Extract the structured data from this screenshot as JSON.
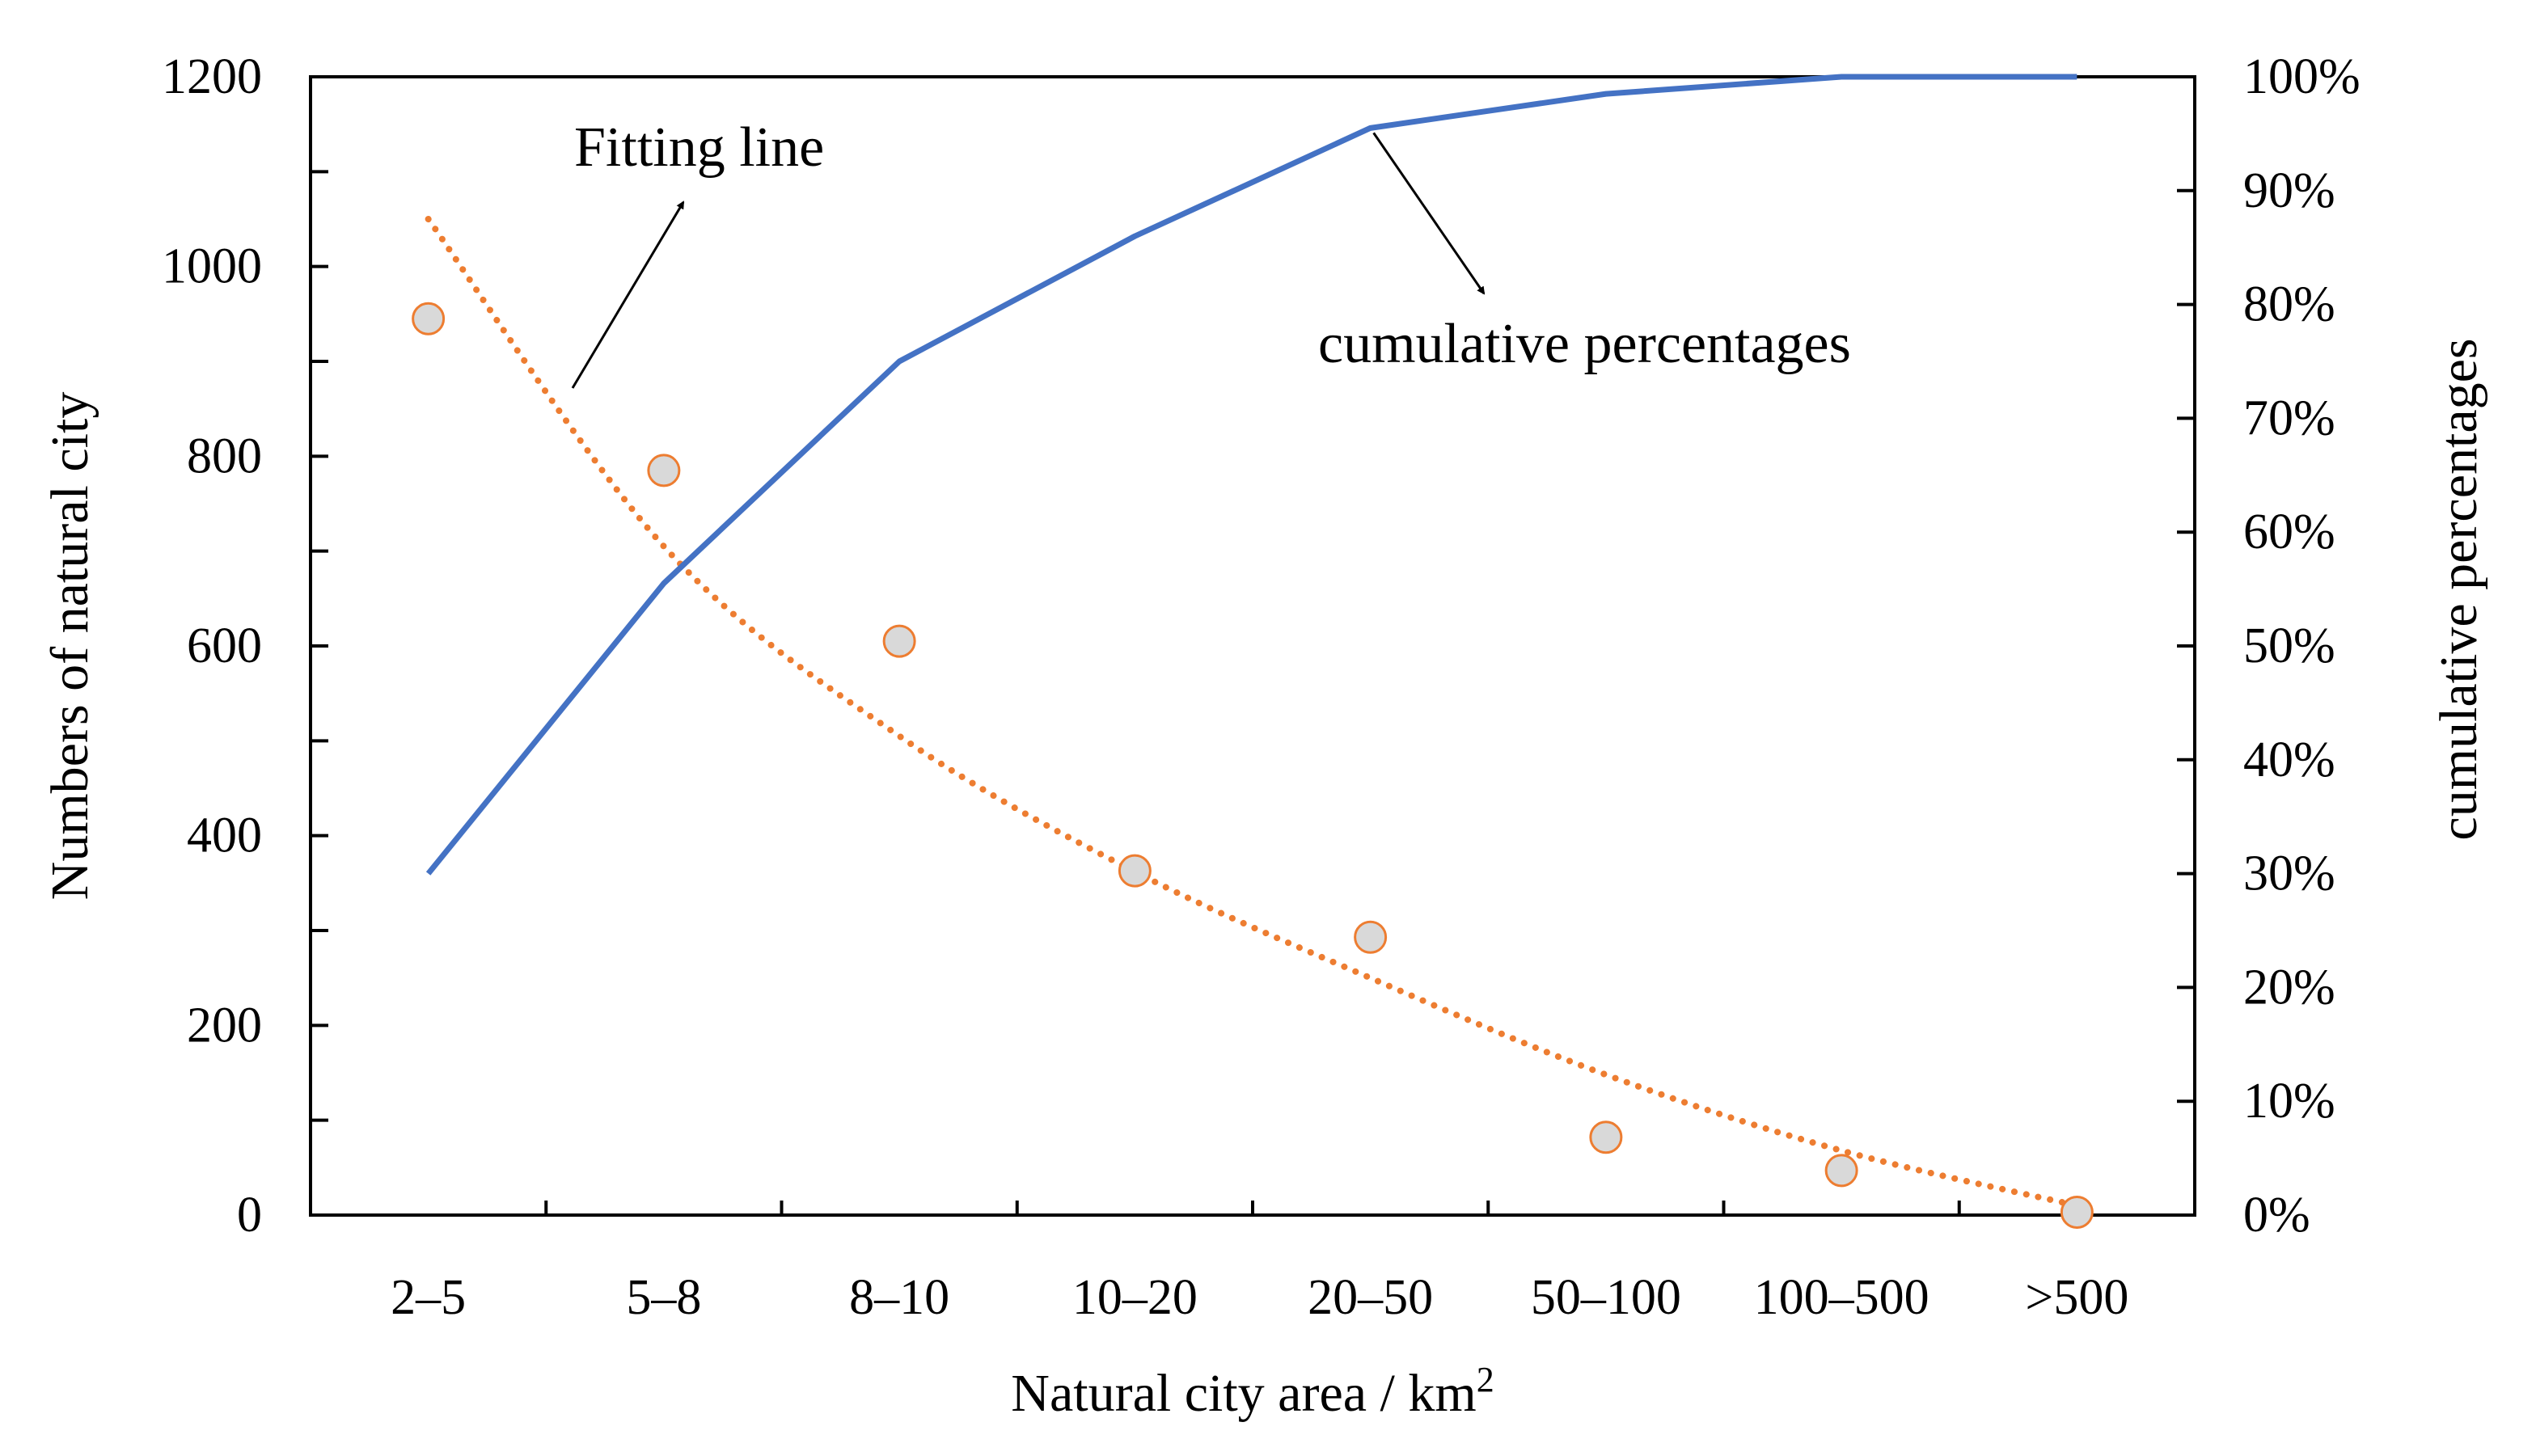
{
  "chart_data": {
    "type": "combo-scatter-line",
    "categories": [
      "2–5",
      "5–8",
      "8–10",
      "10–20",
      "20–50",
      "50–100",
      "100–500",
      ">500"
    ],
    "xlabel": "Natural city area / km",
    "xlabel_sup": "2",
    "ylabel_left": "Numbers of natural city",
    "ylabel_right": "cumulative percentages",
    "ylim_left": [
      0,
      1200
    ],
    "yticks_left": [
      0,
      200,
      400,
      600,
      800,
      1000,
      1200
    ],
    "ylim_right": [
      0,
      100
    ],
    "yticks_right": [
      "0%",
      "10%",
      "20%",
      "30%",
      "40%",
      "50%",
      "60%",
      "70%",
      "80%",
      "90%",
      "100%"
    ],
    "series": [
      {
        "type": "scatter",
        "axis": "left",
        "values": [
          945,
          785,
          605,
          363,
          293,
          82,
          47,
          3
        ],
        "fill": "#d9d9d9",
        "stroke": "#ed7d31"
      },
      {
        "type": "line",
        "axis": "left",
        "values": [
          1050,
          705,
          505,
          362,
          250,
          148,
          68,
          10
        ],
        "style": "dotted",
        "color": "#ed7d31"
      },
      {
        "type": "line",
        "axis": "right",
        "values": [
          30,
          55.5,
          75,
          86,
          95.5,
          98.5,
          100,
          100
        ],
        "color": "#4472c4"
      }
    ],
    "annotations": [
      {
        "text": "Fitting line"
      },
      {
        "text": "cumulative percentages"
      }
    ],
    "grid": false,
    "legend": "none"
  }
}
